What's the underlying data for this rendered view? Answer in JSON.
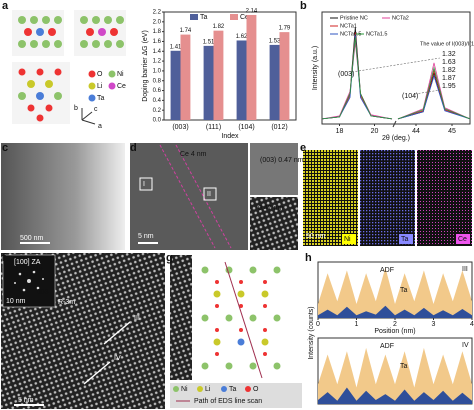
{
  "panel_labels": [
    "a",
    "b",
    "c",
    "d",
    "e",
    "f",
    "g",
    "h"
  ],
  "structure": {
    "legend": [
      "O",
      "Ni",
      "Li",
      "Ce",
      "Ta"
    ],
    "axes": [
      "b",
      "c",
      "a"
    ]
  },
  "micrographs": {
    "c": {
      "scale": "500 nm"
    },
    "d": {
      "region_labels": [
        "I",
        "II"
      ],
      "annotation": "Ce 4 nm",
      "scale": "5 nm",
      "inset_top": "(003) 0.47 nm",
      "inset_bottom": "0.47 nm"
    },
    "e": {
      "scale": "50 nm",
      "maps": [
        "Ni",
        "Ta",
        "Ce"
      ]
    },
    "f": {
      "zone": "[100] ZA",
      "fft_scale": "10 nm",
      "spots": [
        "012",
        "015",
        "003"
      ],
      "group": "R-3m",
      "lines": [
        "III",
        "IV"
      ],
      "scale": "5 nm"
    },
    "g": {
      "legend": [
        "Ni",
        "Li",
        "Ta",
        "O"
      ],
      "path_label": "Path of EDS line scan"
    }
  },
  "chart_data": [
    {
      "type": "bar",
      "xlabel": "Index",
      "ylabel": "Doping barrier ΔG (eV)",
      "categories": [
        "(003)",
        "(111)",
        "(104)",
        "(012)"
      ],
      "series": [
        {
          "name": "Ta",
          "color": "#4f5f9a",
          "values": [
            1.41,
            1.51,
            1.62,
            1.53
          ]
        },
        {
          "name": "Ce",
          "color": "#e58f8f",
          "values": [
            1.74,
            1.82,
            2.14,
            1.79
          ]
        }
      ],
      "ylim": [
        0,
        2.2
      ],
      "yticks": [
        {
          "value": 0,
          "label": "0.0"
        },
        {
          "value": 0.2,
          "label": "0.2"
        },
        {
          "value": 0.4,
          "label": "0.4"
        },
        {
          "value": 0.6,
          "label": "0.6"
        },
        {
          "value": 0.8,
          "label": "0.8"
        },
        {
          "value": 1,
          "label": "1.0"
        },
        {
          "value": 1.2,
          "label": "1.2"
        },
        {
          "value": 1.4,
          "label": "1.4"
        },
        {
          "value": 1.6,
          "label": "1.6"
        },
        {
          "value": 1.8,
          "label": "1.8"
        },
        {
          "value": 2,
          "label": "2.0"
        },
        {
          "value": 2.2,
          "label": "2.2"
        }
      ]
    },
    {
      "type": "line",
      "xlabel": "2θ (deg.)",
      "ylabel": "Intensity (a.u.)",
      "annotations": [
        "(003)",
        "(104)",
        "The value of I(003)/I(104)"
      ],
      "ratios": [
        {
          "text": "1.32",
          "color": "#e0409a"
        },
        {
          "text": "1.63",
          "color": "#e46b8a"
        },
        {
          "text": "1.82",
          "color": "#d02020"
        },
        {
          "text": "1.87",
          "color": "#2f55c0"
        },
        {
          "text": "1.95",
          "color": "#111111"
        }
      ],
      "x": [
        17,
        18,
        18.6,
        18.9,
        19.2,
        19.8,
        21,
        32,
        43.5,
        44.2,
        44.5,
        44.8,
        45.5
      ],
      "xlim": [
        17,
        45.5
      ],
      "xbreak": [
        21,
        43.5
      ],
      "xticks": [
        18,
        20,
        44,
        45
      ],
      "ylim": [
        0,
        1.1
      ],
      "series": [
        {
          "name": "Pristine NC",
          "color": "#111111",
          "values": [
            0.05,
            0.07,
            0.3,
            0.95,
            0.3,
            0.08,
            0.05,
            null,
            0.05,
            0.12,
            0.5,
            0.14,
            0.05
          ]
        },
        {
          "name": "NCTa1",
          "color": "#d02020",
          "values": [
            0.05,
            0.07,
            0.28,
            0.9,
            0.28,
            0.08,
            0.05,
            null,
            0.05,
            0.13,
            0.52,
            0.14,
            0.05
          ]
        },
        {
          "name": "NCTa2",
          "color": "#e0409a",
          "values": [
            0.05,
            0.08,
            0.32,
            0.8,
            0.3,
            0.09,
            0.05,
            null,
            0.05,
            0.15,
            0.6,
            0.16,
            0.05
          ]
        },
        {
          "name": "NCTa0.5",
          "color": "#2f55c0",
          "values": [
            0.05,
            0.07,
            0.26,
            0.88,
            0.26,
            0.08,
            0.05,
            null,
            0.05,
            0.12,
            0.47,
            0.13,
            0.05
          ]
        },
        {
          "name": "NCTa1.5",
          "color": "#2a9a3a",
          "values": [
            0.05,
            0.07,
            0.3,
            0.85,
            0.3,
            0.08,
            0.05,
            null,
            0.05,
            0.14,
            0.55,
            0.15,
            0.05
          ]
        }
      ]
    },
    {
      "type": "area",
      "label": "III",
      "xlabel": "Position (nm)",
      "ylabel": "Intensity (counts)",
      "x": [
        0,
        0.25,
        0.5,
        0.75,
        1,
        1.25,
        1.5,
        1.75,
        2,
        2.25,
        2.5,
        2.75,
        3,
        3.25,
        3.5,
        3.75,
        4
      ],
      "xlim": [
        0,
        4
      ],
      "xticks": [
        0,
        1,
        2,
        3,
        4
      ],
      "ylim": [
        0,
        1
      ],
      "series": [
        {
          "name": "ADF",
          "color": "#f2c98a",
          "values": [
            0.25,
            0.8,
            0.3,
            0.85,
            0.25,
            0.8,
            0.3,
            0.9,
            0.25,
            0.8,
            0.3,
            0.85,
            0.25,
            0.8,
            0.3,
            0.85,
            0.3
          ]
        },
        {
          "name": "Ta",
          "color": "#2f4f9a",
          "values": [
            0.05,
            0.15,
            0.05,
            0.2,
            0.05,
            0.12,
            0.06,
            0.22,
            0.05,
            0.15,
            0.05,
            0.18,
            0.05,
            0.14,
            0.05,
            0.16,
            0.05
          ]
        }
      ]
    },
    {
      "type": "area",
      "label": "IV",
      "x": [
        0,
        0.25,
        0.5,
        0.75,
        1,
        1.25,
        1.5,
        1.75,
        2,
        2.25,
        2.5,
        2.75,
        3,
        3.25,
        3.5,
        3.75,
        4
      ],
      "xlim": [
        0,
        4
      ],
      "ylim": [
        0,
        1
      ],
      "series": [
        {
          "name": "ADF",
          "color": "#f2c98a",
          "values": [
            0.3,
            0.75,
            0.3,
            0.8,
            0.25,
            0.85,
            0.3,
            0.75,
            0.3,
            0.8,
            0.25,
            0.85,
            0.3,
            0.75,
            0.3,
            0.8,
            0.3
          ]
        },
        {
          "name": "Ta",
          "color": "#2f4f9a",
          "values": [
            0.06,
            0.18,
            0.05,
            0.25,
            0.05,
            0.2,
            0.06,
            0.15,
            0.05,
            0.22,
            0.05,
            0.18,
            0.06,
            0.2,
            0.05,
            0.17,
            0.05
          ]
        }
      ]
    }
  ]
}
